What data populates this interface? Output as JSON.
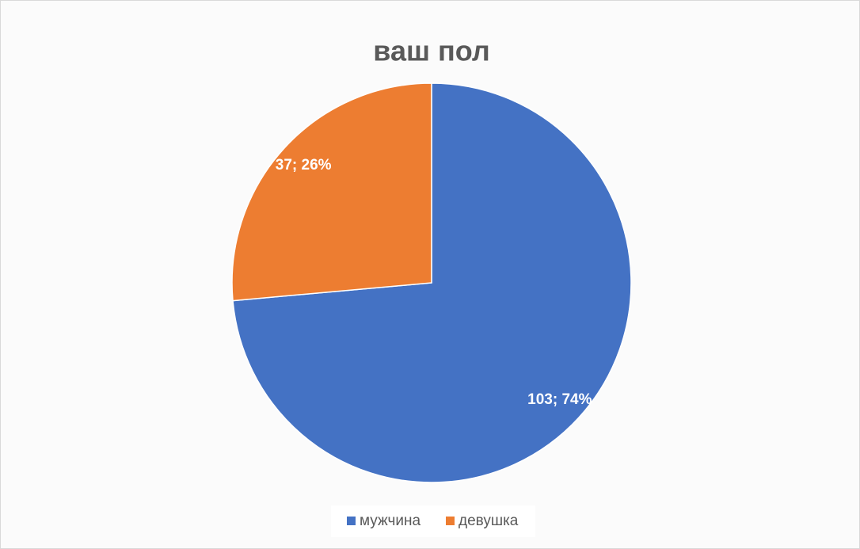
{
  "chart_data": {
    "type": "pie",
    "title": "ваш пол",
    "categories": [
      "мужчина",
      "девушка"
    ],
    "values": [
      103,
      37
    ],
    "value_labels": [
      "103; 74%",
      "37; 26%"
    ],
    "colors": [
      "#4472c4",
      "#ed7d31"
    ],
    "legend": "bottom"
  }
}
